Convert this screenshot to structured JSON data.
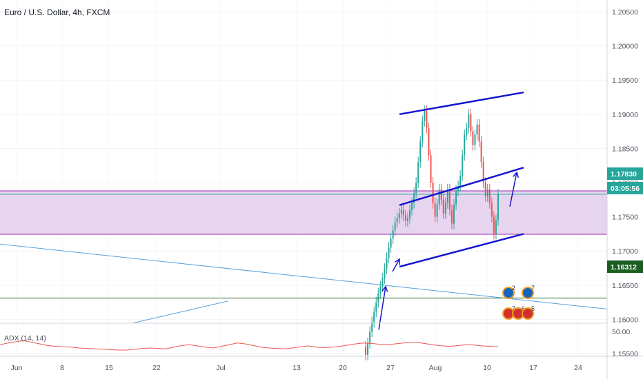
{
  "header": {
    "title": "Euro / U.S. Dollar, 4h, FXCM"
  },
  "price_axis": {
    "ticks": [
      "1.20500",
      "1.20000",
      "1.19500",
      "1.19000",
      "1.18500",
      "1.18000",
      "1.17500",
      "1.17000",
      "1.16500",
      "1.16000",
      "1.15500"
    ],
    "current_price": "1.17830",
    "countdown": "03:05:56",
    "level_price": "1.16312",
    "colors": {
      "current": "#26a69a",
      "level": "#1b5e20"
    }
  },
  "time_axis": {
    "ticks": [
      "Jun",
      "8",
      "15",
      "22",
      "Jul",
      "13",
      "20",
      "27",
      "Aug",
      "10",
      "17",
      "24"
    ]
  },
  "indicator": {
    "label": "ADX (14, 14)",
    "tick": "50.00",
    "line_color": "#ef5350"
  },
  "events": {
    "top": [
      "2",
      "7"
    ],
    "bottom": [
      "7",
      "6",
      "5"
    ]
  },
  "chart_data": {
    "type": "line",
    "title": "Euro / U.S. Dollar, 4h, FXCM",
    "ylim": [
      1.1535,
      1.2075
    ],
    "price_axis_labels": [
      "1.20500",
      "1.20000",
      "1.19500",
      "1.19000",
      "1.18500",
      "1.18000",
      "1.17500",
      "1.17000",
      "1.16500",
      "1.16000",
      "1.15500"
    ],
    "x_labels": [
      "Jun",
      "8",
      "15",
      "22",
      "Jul",
      "13",
      "20",
      "27",
      "Aug",
      "10",
      "17",
      "24"
    ],
    "series": [
      {
        "values": [
          1.1548,
          1.1565,
          1.1582,
          1.1596,
          1.1611,
          1.1625,
          1.1638,
          1.1648,
          1.166,
          1.1674,
          1.169,
          1.1705,
          1.1718,
          1.173,
          1.1742,
          1.1748,
          1.1755,
          1.176,
          1.1752,
          1.1744,
          1.1748,
          1.176,
          1.177,
          1.1785,
          1.18,
          1.183,
          1.186,
          1.189,
          1.1905,
          1.188,
          1.184,
          1.18,
          1.177,
          1.175,
          1.1768,
          1.179,
          1.1775,
          1.1755,
          1.177,
          1.179,
          1.176,
          1.174,
          1.1768,
          1.1788,
          1.1795,
          1.181,
          1.184,
          1.187,
          1.188,
          1.19,
          1.1875,
          1.1855,
          1.187,
          1.1885,
          1.186,
          1.183,
          1.18,
          1.178,
          1.179,
          1.177,
          1.175,
          1.1725,
          1.1745,
          1.1783
        ]
      }
    ],
    "zones": [
      {
        "type": "support_resistance_band",
        "from": 1.1685,
        "to": 1.1755,
        "color": "#e7d5ef"
      }
    ],
    "horizontal_lines": [
      {
        "price": 1.1783,
        "color": "#26a69a"
      },
      {
        "price": 1.16312,
        "color": "#1b5e20"
      }
    ],
    "channel": {
      "color": "#1515d1",
      "lines": [
        {
          "from": [
            "Jul 27",
            1.19
          ],
          "to": [
            "Aug 13",
            1.1932
          ]
        },
        {
          "from": [
            "Jul 27",
            1.1767
          ],
          "to": [
            "Aug 13",
            1.1822
          ]
        },
        {
          "from": [
            "Jul 27",
            1.1677
          ],
          "to": [
            "Aug 13",
            1.1725
          ]
        }
      ]
    },
    "arrows": [
      {
        "from": [
          "Jul 24",
          1.1585
        ],
        "to": [
          "Jul 25",
          1.1648
        ]
      },
      {
        "from": [
          "Jul 26",
          1.167
        ],
        "to": [
          "Jul 27",
          1.1688
        ]
      },
      {
        "from": [
          "Aug 12",
          1.1765
        ],
        "to": [
          "Aug 13",
          1.1815
        ]
      }
    ],
    "trendlines": [
      {
        "color": "#5aa0d8",
        "from": [
          "Jun 1",
          1.171
        ],
        "to": [
          "Aug 31",
          1.1615
        ]
      }
    ],
    "indicator": {
      "name": "ADX (14, 14)",
      "reference_level": 50.0,
      "values": [
        18,
        22,
        25,
        28,
        24,
        20,
        16,
        14,
        13,
        12,
        10,
        9,
        8,
        7,
        6,
        5,
        5,
        7,
        9,
        10,
        9,
        8,
        12,
        16,
        18,
        15,
        12,
        10,
        14,
        18,
        22,
        20,
        16,
        12,
        10,
        9,
        8,
        10,
        13,
        15,
        12,
        11,
        12,
        14,
        17,
        20,
        22,
        21,
        19,
        18,
        20,
        22,
        24,
        23,
        20,
        17,
        15,
        14,
        16,
        18,
        17,
        15,
        14,
        13
      ]
    }
  }
}
